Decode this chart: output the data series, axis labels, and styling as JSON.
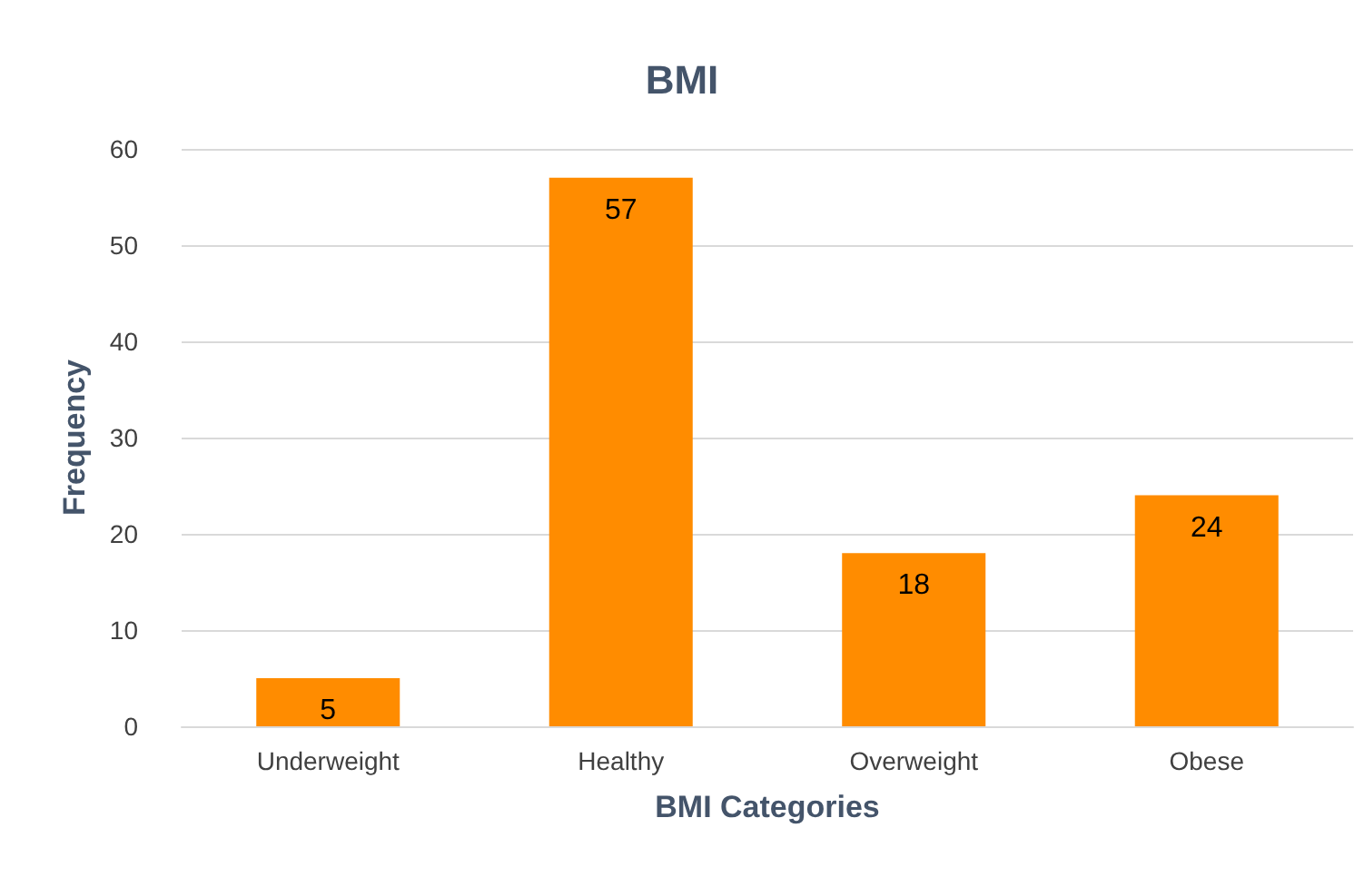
{
  "chart_data": {
    "type": "bar",
    "title": "BMI",
    "xlabel": "BMI Categories",
    "ylabel": "Frequency",
    "categories": [
      "Underweight",
      "Healthy",
      "Overweight",
      "Obese"
    ],
    "values": [
      5,
      57,
      18,
      24
    ],
    "color": "#ff8c00",
    "ylim": [
      0,
      60
    ],
    "yticks": [
      0,
      10,
      20,
      30,
      40,
      50,
      60
    ],
    "grid": "y",
    "data_labels": true
  }
}
